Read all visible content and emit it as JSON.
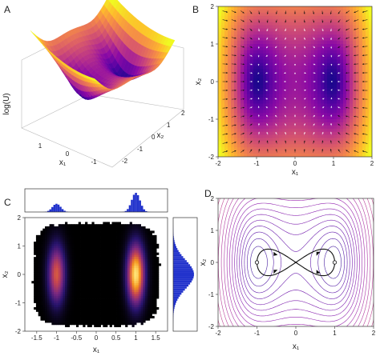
{
  "panels": {
    "A": {
      "letter": "A",
      "zlabel": "log(U)",
      "xlabel": "x₁",
      "ylabel": "x₂",
      "xticks": [
        "1",
        "0",
        "-1"
      ],
      "yticks": [
        "-2",
        "-1",
        "0",
        "1",
        "2"
      ]
    },
    "B": {
      "letter": "B",
      "xlabel": "x₁",
      "ylabel": "x₂"
    },
    "C": {
      "letter": "C",
      "xlabel": "x₁",
      "ylabel": "x₂"
    },
    "D": {
      "letter": "D",
      "xlabel": "x₁",
      "ylabel": "x₂"
    }
  },
  "chart_data": [
    {
      "panel": "A",
      "type": "surface3d",
      "function": "log(U), double-well potential with minima near x1 = -1 and x1 = 1",
      "x_range": [
        -2,
        2
      ],
      "y_range": [
        -2,
        2
      ],
      "colormap": "plasma"
    },
    {
      "panel": "B",
      "type": "heatmap",
      "overlay": "vector field (force arrows)",
      "xlim": [
        -2,
        2
      ],
      "ylim": [
        -2,
        2
      ],
      "xticks": [
        -2,
        -1,
        0,
        1,
        2
      ],
      "yticks": [
        -2,
        -1,
        0,
        1,
        2
      ],
      "wells": [
        {
          "x1": -1,
          "x2": 0
        },
        {
          "x1": 1,
          "x2": 0
        }
      ],
      "colormap": "plasma"
    },
    {
      "panel": "C",
      "type": "heatmap",
      "description": "2D histogram of samples with marginal histograms",
      "xlim": [
        -1.8,
        1.8
      ],
      "ylim": [
        -2,
        2
      ],
      "xticks": [
        -1.5,
        -1,
        -0.5,
        0,
        0.5,
        1,
        1.5
      ],
      "yticks": [
        -2,
        -1,
        0,
        1,
        2
      ],
      "modes": [
        {
          "x1": -1,
          "x2": 0,
          "weight": 0.3
        },
        {
          "x1": 1,
          "x2": 0,
          "weight": 0.7
        }
      ],
      "marginal_color": "#2233cc"
    },
    {
      "panel": "D",
      "type": "contour",
      "xlim": [
        -2,
        2
      ],
      "ylim": [
        -2,
        2
      ],
      "xticks": [
        -2,
        -1,
        0,
        1,
        2
      ],
      "yticks": [
        -2,
        -1,
        0,
        1,
        2
      ],
      "stationary_points": [
        {
          "x1": -1,
          "x2": 0
        },
        {
          "x1": 1,
          "x2": 0
        },
        {
          "x1": 0,
          "x2": 0
        }
      ],
      "colormap": "plasma"
    }
  ]
}
